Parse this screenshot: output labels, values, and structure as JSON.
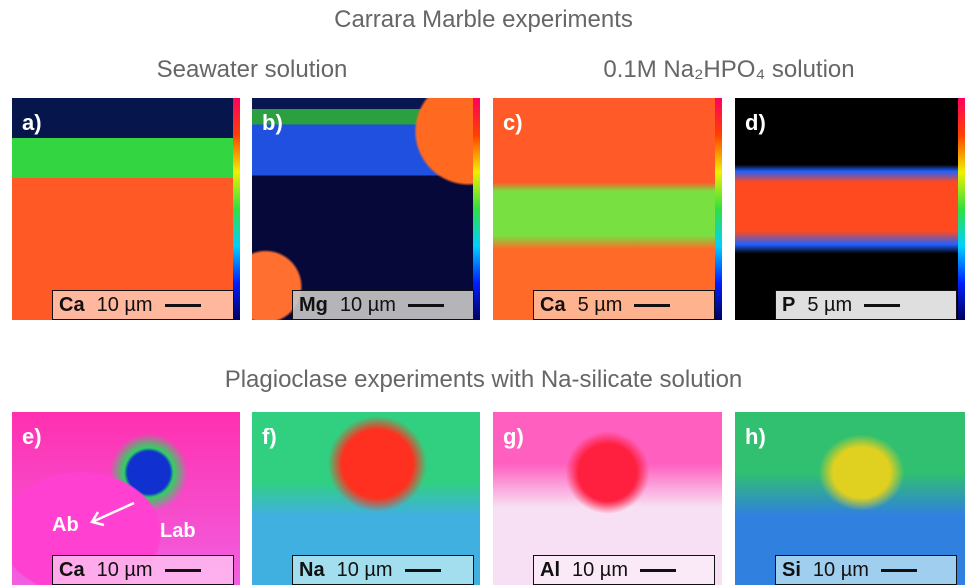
{
  "header": {
    "title": "Carrara Marble experiments",
    "left_subtitle": "Seawater solution",
    "right_subtitle": "0.1M Na₂HPO₄ solution"
  },
  "section2": {
    "title": "Plagioclase experiments with Na-silicate solution"
  },
  "panels": [
    {
      "letter": "a)",
      "element": "Ca",
      "scale": "10 µm"
    },
    {
      "letter": "b)",
      "element": "Mg",
      "scale": "10 µm"
    },
    {
      "letter": "c)",
      "element": "Ca",
      "scale": "5 µm"
    },
    {
      "letter": "d)",
      "element": "P",
      "scale": "5 µm"
    },
    {
      "letter": "e)",
      "element": "Ca",
      "scale": "10 µm"
    },
    {
      "letter": "f)",
      "element": "Na",
      "scale": "10 µm"
    },
    {
      "letter": "g)",
      "element": "Al",
      "scale": "10 µm"
    },
    {
      "letter": "h)",
      "element": "Si",
      "scale": "10 µm"
    }
  ],
  "annotations": {
    "ab": "Ab",
    "lab": "Lab"
  }
}
